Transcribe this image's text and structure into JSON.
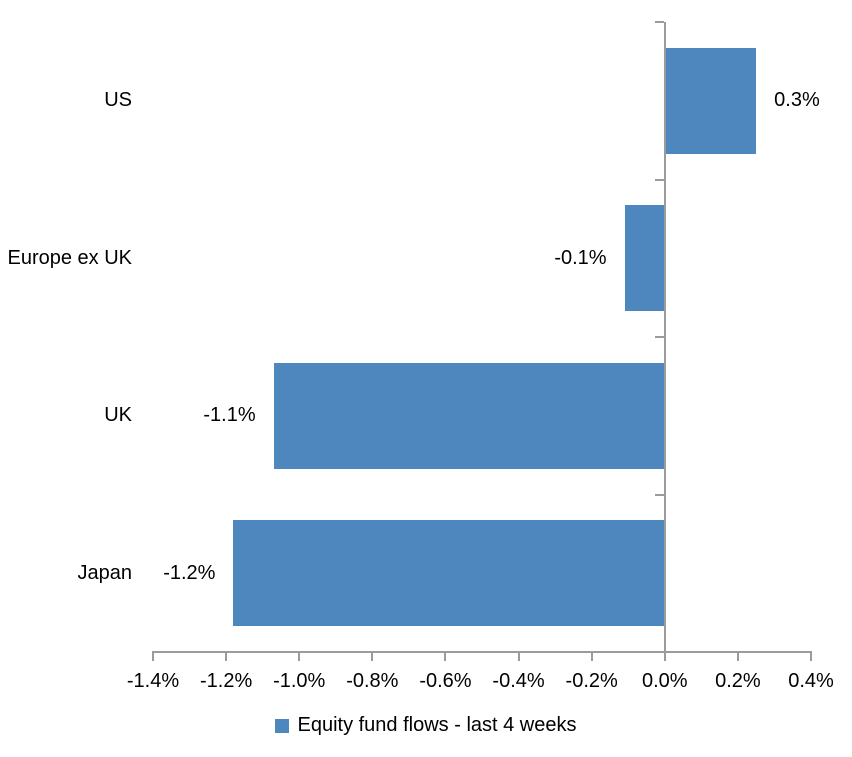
{
  "chart_data": {
    "type": "bar",
    "orientation": "horizontal",
    "title": "",
    "xlabel": "",
    "ylabel": "",
    "grid": false,
    "categories": [
      "US",
      "Europe ex UK",
      "UK",
      "Japan"
    ],
    "series": [
      {
        "name": "Equity fund flows - last 4 weeks",
        "values": [
          0.25,
          -0.11,
          -1.07,
          -1.18
        ],
        "value_labels": [
          "0.3%",
          "-0.1%",
          "-1.1%",
          "-1.2%"
        ]
      }
    ],
    "x_axis": {
      "min": -1.4,
      "max": 0.4,
      "tick_step": 0.2,
      "tick_labels": [
        "-1.4%",
        "-1.2%",
        "-1.0%",
        "-0.8%",
        "-0.6%",
        "-0.4%",
        "-0.2%",
        "0.0%",
        "0.2%",
        "0.4%"
      ]
    },
    "legend": {
      "position": "bottom",
      "entries": [
        "Equity fund flows - last 4 weeks"
      ]
    }
  },
  "colors": {
    "bar": "#4E87BE",
    "axis": "#9B9B9B",
    "text": "#000000",
    "background": "#FFFFFF"
  }
}
